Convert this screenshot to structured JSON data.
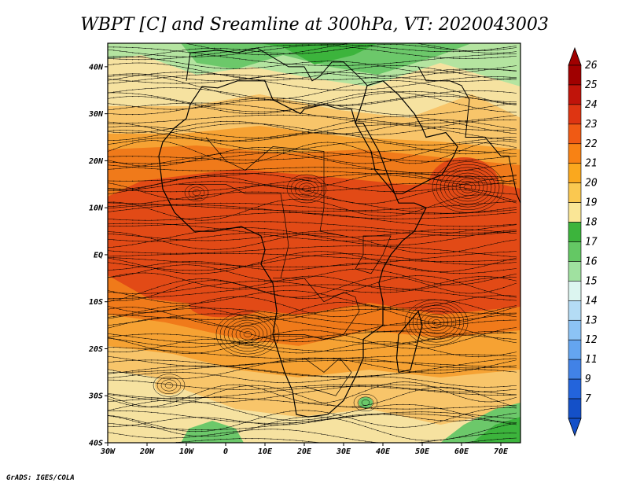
{
  "title": "WBPT [C] and Sreamline at 300hPa, VT: 2020043003",
  "credit": "GrADS: IGES/COLA",
  "map": {
    "lon_ticks": [
      "30W",
      "20W",
      "10W",
      "0",
      "10E",
      "20E",
      "30E",
      "40E",
      "50E",
      "60E",
      "70E"
    ],
    "lat_ticks": [
      "40N",
      "30N",
      "20N",
      "10N",
      "EQ",
      "10S",
      "20S",
      "30S",
      "40S"
    ]
  },
  "colorbar": {
    "labels": [
      "26",
      "25",
      "24",
      "23",
      "22",
      "21",
      "20",
      "19",
      "18",
      "17",
      "16",
      "15",
      "14",
      "13",
      "12",
      "11",
      "9",
      "7"
    ],
    "colors": [
      "#a00000",
      "#c0140a",
      "#de3512",
      "#f05a14",
      "#f88214",
      "#faa81e",
      "#fac850",
      "#fae696",
      "#3cb43c",
      "#64c864",
      "#a0e1a0",
      "#dcf5f0",
      "#b4dcf5",
      "#8cc3f5",
      "#64a5f0",
      "#4182e6",
      "#2364dc",
      "#1450c8"
    ],
    "top_arrow_color": "#a00000",
    "bottom_arrow_color": "#1450c8"
  },
  "field_colors": {
    "warm_core": "#e24a16",
    "warm": "#f07a1a",
    "mid": "#f6a233",
    "mild": "#f8c56a",
    "cool": "#f6e2a0",
    "green_light": "#b4e4a0",
    "green": "#6cc86a",
    "green_dark": "#3cb43c"
  }
}
